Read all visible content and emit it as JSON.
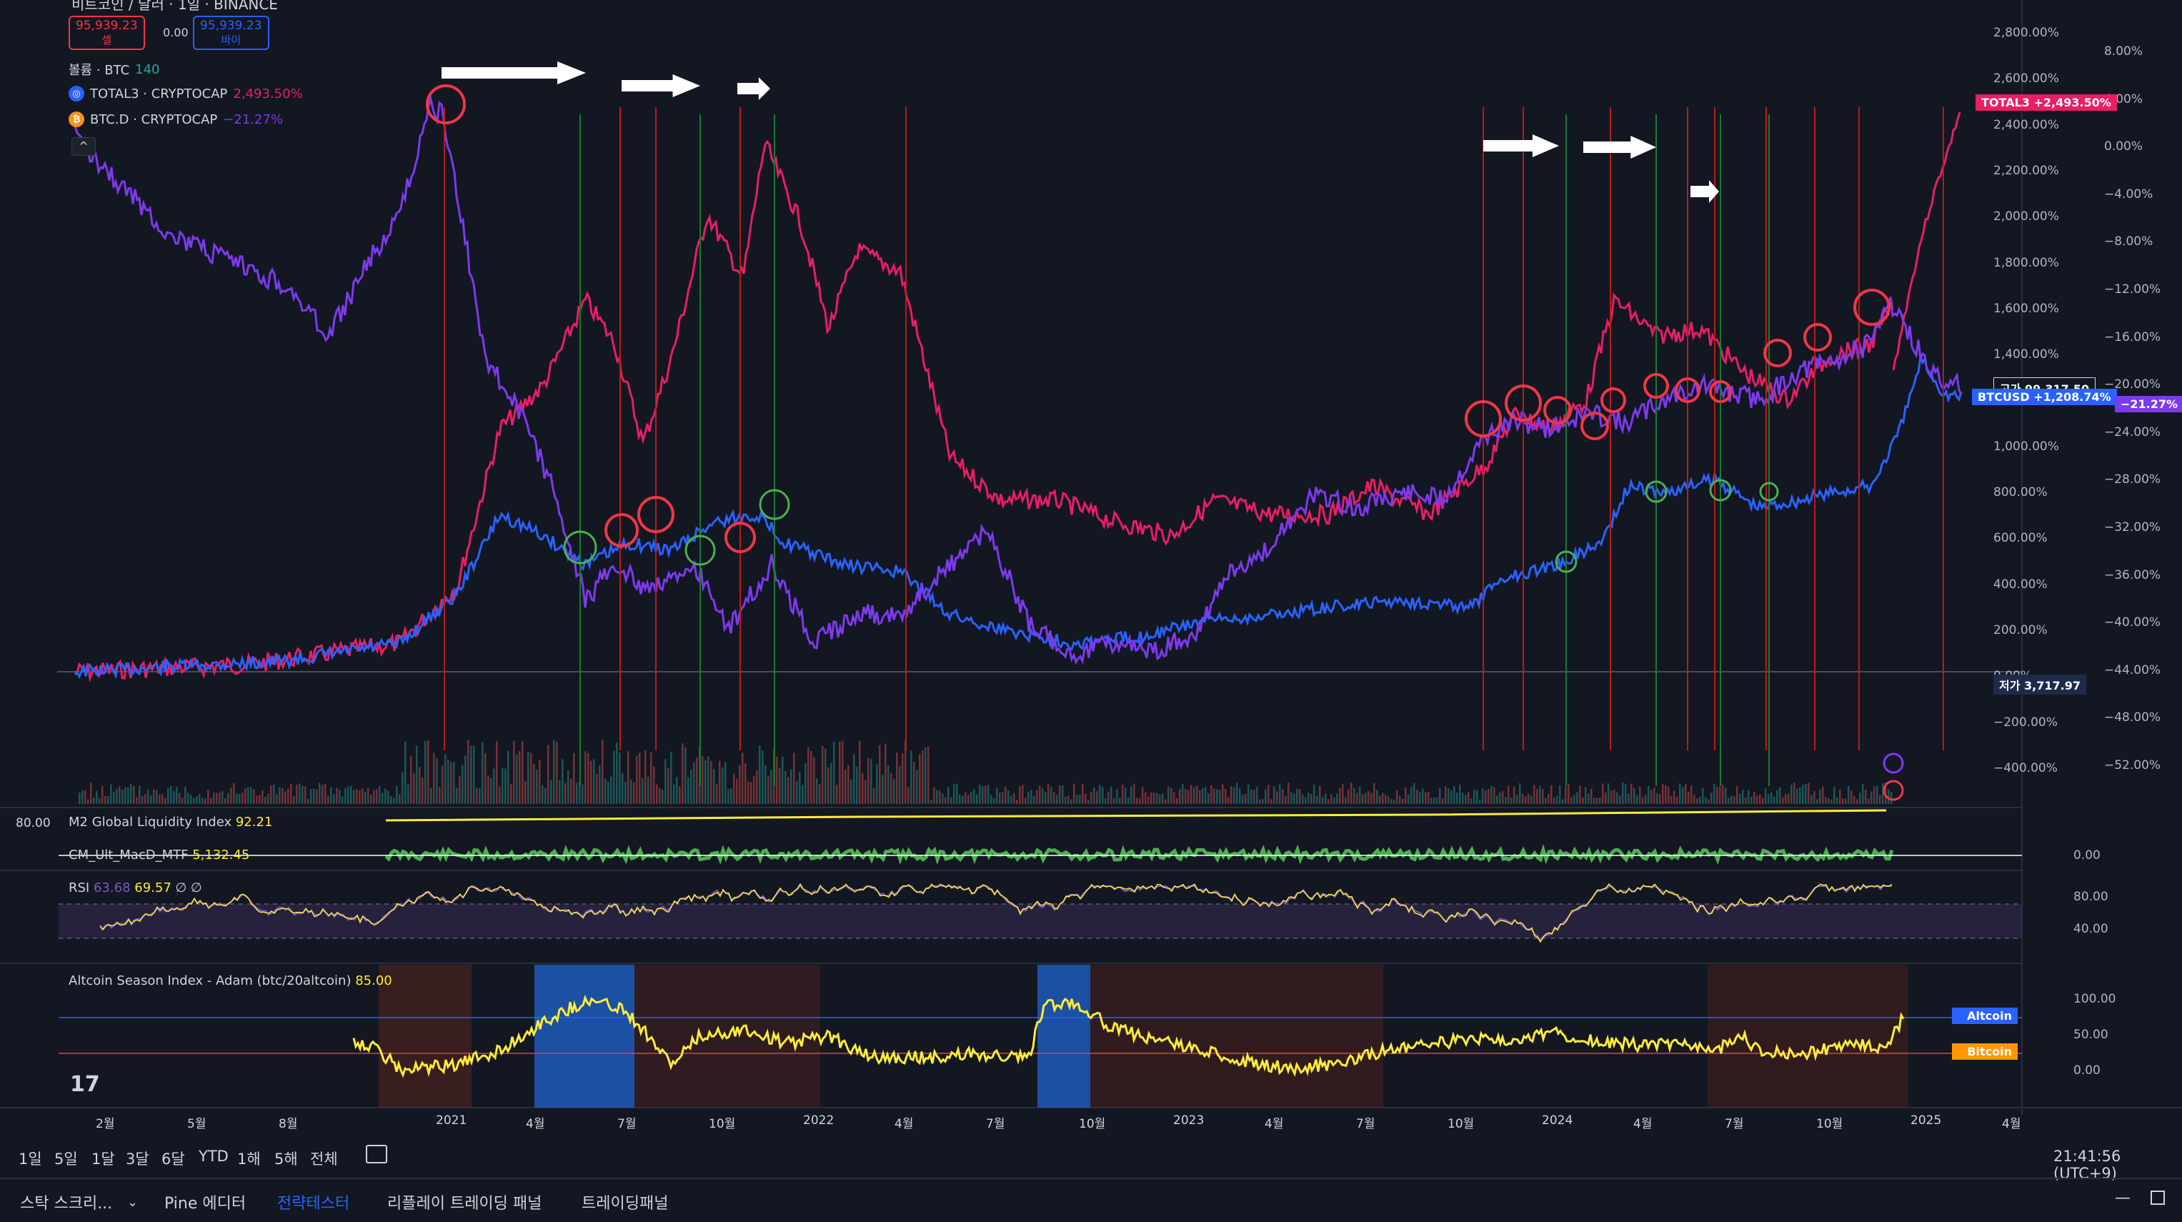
{
  "header": {
    "symbol_partial": "비트코인 / 달러 · 1일 · BINANCE",
    "sell_price": "95,939.23",
    "sell_label": "셀",
    "spread": "0.00",
    "buy_price": "95,939.23",
    "buy_label": "바이"
  },
  "legend": {
    "volume": "볼륨 · BTC",
    "volume_value": "140",
    "total3_name": "TOTAL3 · CRYPTOCAP",
    "total3_value": "2,493.50%",
    "btcd_name": "BTC.D · CRYPTOCAP",
    "btcd_value": "−21.27%"
  },
  "right_axis": {
    "pct_labels": [
      "2,800.00%",
      "2,600.00%",
      "2,400.00%",
      "2,200.00%",
      "2,000.00%",
      "1,800.00%",
      "1,600.00%",
      "1,400.00%",
      "1,200.00%",
      "1,000.00%",
      "800.00%",
      "600.00%",
      "400.00%",
      "200.00%",
      "0.00%",
      "−200.00%",
      "−400.00%"
    ],
    "btcd_labels": [
      "8.00%",
      "4.00%",
      "0.00%",
      "−4.00%",
      "−8.00%",
      "−12.00%",
      "−16.00%",
      "−20.00%",
      "−24.00%",
      "−28.00%",
      "−32.00%",
      "−36.00%",
      "−40.00%",
      "−44.00%",
      "−48.00%",
      "−52.00%"
    ],
    "total3_tag": "TOTAL3",
    "total3_tag_value": "+2,493.50%",
    "high_label": "고가",
    "high_value": "99,317.50",
    "btcusd_tag": "BTCUSD",
    "btcusd_value": "+1,208.74%",
    "btcd_tag_value": "−21.27%",
    "low_label": "저가",
    "low_value": "3,717.97"
  },
  "panes": {
    "m2_left_value": "80.00",
    "m2_title": "M2 Global Liquidity Index",
    "m2_value": "92.21",
    "macd_title": "CM_Ult_MacD_MTF",
    "macd_value": "5,132.45",
    "macd_zero": "0.00",
    "rsi_title": "RSI",
    "rsi_v1": "63.68",
    "rsi_v2": "69.57",
    "rsi_v3": "∅ ∅",
    "rsi_80": "80.00",
    "rsi_40": "40.00",
    "alt_title": "Altcoin Season Index - Adam (btc/20altcoin)",
    "alt_value": "85.00",
    "alt_100": "100.00",
    "alt_50": "50.00",
    "alt_0": "0.00",
    "alt_tag_altcoin": "Altcoin",
    "alt_tag_bitcoin": "Bitcoin"
  },
  "time_axis": [
    "2월",
    "5월",
    "8월",
    "2021",
    "4월",
    "7월",
    "10월",
    "2022",
    "4월",
    "7월",
    "10월",
    "2023",
    "4월",
    "7월",
    "10월",
    "2024",
    "4월",
    "7월",
    "10월",
    "2025",
    "4월"
  ],
  "timeframes": [
    "1일",
    "5일",
    "1달",
    "3달",
    "6달",
    "YTD",
    "1해",
    "5해",
    "전체"
  ],
  "clock": "21:41:56 (UTC+9)",
  "bottom_tabs": [
    "스탁 스크리...",
    "Pine 에디터",
    "전략테스터",
    "리플레이 트레이딩 패널",
    "트레이딩패널"
  ],
  "colors": {
    "bg": "#131722",
    "total3": "#e91e63",
    "btcusd": "#2962ff",
    "btcd": "#7c3aed",
    "alt_line": "#ffeb3b",
    "altcoin_tag": "#2962ff",
    "bitcoin_tag": "#ff9800"
  },
  "icons": [
    "tradingview-logo-icon",
    "calendar-icon",
    "chevron-down-icon",
    "minimize-icon",
    "maximize-icon"
  ]
}
